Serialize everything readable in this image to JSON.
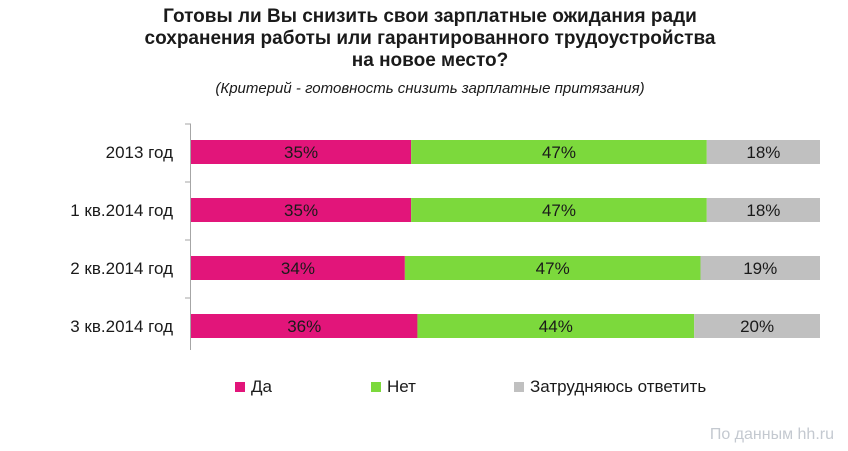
{
  "title_lines": [
    "Готовы ли Вы снизить свои зарплатные ожидания ради",
    "сохранения работы или гарантированного трудоустройства",
    "на новое место?"
  ],
  "subtitle": "(Критерий - готовность снизить зарплатные притязания)",
  "source": "По данным hh.ru",
  "colors": {
    "da": "#e2157a",
    "net": "#7cd93c",
    "zatr": "#c0c0c0"
  },
  "chart_data": {
    "type": "bar",
    "orientation": "horizontal",
    "stacked": "percent",
    "categories": [
      "2013 год",
      "1 кв.2014 год",
      "2 кв.2014 год",
      "3 кв.2014 год"
    ],
    "series": [
      {
        "name": "Да",
        "values": [
          35,
          35,
          34,
          36
        ],
        "labels": [
          "35%",
          "35%",
          "34%",
          "36%"
        ],
        "color": "#e2157a"
      },
      {
        "name": "Нет",
        "values": [
          47,
          47,
          47,
          44
        ],
        "labels": [
          "47%",
          "47%",
          "47%",
          "44%"
        ],
        "color": "#7cd93c"
      },
      {
        "name": "Затрудняюсь ответить",
        "values": [
          18,
          18,
          19,
          20
        ],
        "labels": [
          "18%",
          "18%",
          "19%",
          "20%"
        ],
        "color": "#c0c0c0"
      }
    ],
    "legend_position": "bottom",
    "grid": false
  }
}
